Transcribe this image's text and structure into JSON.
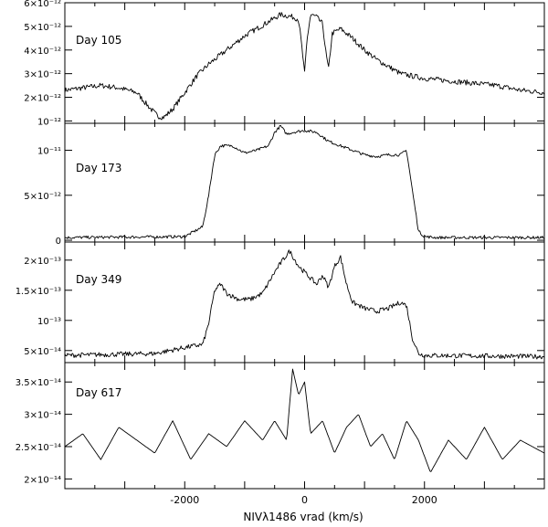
{
  "figure": {
    "xlabel": "NIVλ1486 vrad (km/s)"
  },
  "chart_data": [
    {
      "type": "line",
      "panel_label": "Day 105",
      "xlim": [
        -4000,
        4000
      ],
      "ylim": [
        9e-13,
        6e-12
      ],
      "yticks": [
        {
          "value": 1e-12,
          "label": "10⁻¹²"
        },
        {
          "value": 2e-12,
          "label": "2×10⁻¹²"
        },
        {
          "value": 3e-12,
          "label": "3×10⁻¹²"
        },
        {
          "value": 4e-12,
          "label": "4×10⁻¹²"
        },
        {
          "value": 5e-12,
          "label": "5×10⁻¹²"
        },
        {
          "value": 6e-12,
          "label": "6×10⁻¹²"
        }
      ],
      "x": [
        -4000,
        -3700,
        -3400,
        -3100,
        -2800,
        -2600,
        -2450,
        -2350,
        -2200,
        -2000,
        -1800,
        -1600,
        -1400,
        -1200,
        -1000,
        -800,
        -600,
        -400,
        -200,
        -100,
        -50,
        0,
        40,
        100,
        200,
        300,
        360,
        400,
        460,
        600,
        800,
        1000,
        1200,
        1400,
        1600,
        2000,
        2400,
        2800,
        3200,
        3600,
        4000
      ],
      "y": [
        2.3e-12,
        2.4e-12,
        2.5e-12,
        2.4e-12,
        2.2e-12,
        1.6e-12,
        1.2e-12,
        1.15e-12,
        1.5e-12,
        2.2e-12,
        2.9e-12,
        3.4e-12,
        3.8e-12,
        4.2e-12,
        4.6e-12,
        4.9e-12,
        5.2e-12,
        5.5e-12,
        5.4e-12,
        5.3e-12,
        4.2e-12,
        3e-12,
        4.4e-12,
        5.5e-12,
        5.4e-12,
        5.1e-12,
        3.8e-12,
        3.2e-12,
        4.7e-12,
        4.9e-12,
        4.5e-12,
        4e-12,
        3.6e-12,
        3.3e-12,
        3e-12,
        2.8e-12,
        2.7e-12,
        2.6e-12,
        2.5e-12,
        2.3e-12,
        2.2e-12
      ]
    },
    {
      "type": "line",
      "panel_label": "Day 173",
      "xlim": [
        -4000,
        4000
      ],
      "ylim": [
        -2e-13,
        1.3e-11
      ],
      "yticks": [
        {
          "value": 0,
          "label": "0"
        },
        {
          "value": 5e-12,
          "label": "5×10⁻¹²"
        },
        {
          "value": 1e-11,
          "label": "10⁻¹¹"
        }
      ],
      "x": [
        -4000,
        -2000,
        -1700,
        -1600,
        -1500,
        -1400,
        -1200,
        -1000,
        -800,
        -600,
        -500,
        -400,
        -300,
        -200,
        0,
        200,
        400,
        600,
        800,
        1000,
        1200,
        1400,
        1600,
        1700,
        1800,
        1900,
        2000,
        2200,
        4000
      ],
      "y": [
        3e-13,
        4e-13,
        1.5e-12,
        5e-12,
        9.5e-12,
        1.05e-11,
        1.05e-11,
        9.7e-12,
        1e-11,
        1.05e-11,
        1.2e-11,
        1.27e-11,
        1.18e-11,
        1.2e-11,
        1.22e-11,
        1.2e-11,
        1.1e-11,
        1.05e-11,
        1e-11,
        9.5e-12,
        9.3e-12,
        9.5e-12,
        9.5e-12,
        1e-11,
        5.5e-12,
        1e-12,
        4e-13,
        3e-13,
        3e-13
      ]
    },
    {
      "type": "line",
      "panel_label": "Day 349",
      "xlim": [
        -4000,
        4000
      ],
      "ylim": [
        3e-14,
        2.3e-13
      ],
      "yticks": [
        {
          "value": 5e-14,
          "label": "5×10⁻¹⁴"
        },
        {
          "value": 1e-13,
          "label": "10⁻¹³"
        },
        {
          "value": 1.5e-13,
          "label": "1.5×10⁻¹³"
        },
        {
          "value": 2e-13,
          "label": "2×10⁻¹³"
        }
      ],
      "x": [
        -4000,
        -2500,
        -2000,
        -1700,
        -1600,
        -1500,
        -1400,
        -1300,
        -1100,
        -900,
        -700,
        -500,
        -400,
        -250,
        -100,
        0,
        100,
        200,
        300,
        400,
        500,
        600,
        700,
        800,
        1000,
        1200,
        1400,
        1600,
        1700,
        1800,
        1900,
        2000,
        4000
      ],
      "y": [
        4.2e-14,
        4.5e-14,
        5.5e-14,
        6e-14,
        9.5e-14,
        1.5e-13,
        1.6e-13,
        1.45e-13,
        1.35e-13,
        1.35e-13,
        1.45e-13,
        1.8e-13,
        1.95e-13,
        2.15e-13,
        1.9e-13,
        1.8e-13,
        1.7e-13,
        1.6e-13,
        1.75e-13,
        1.55e-13,
        1.9e-13,
        2.05e-13,
        1.6e-13,
        1.3e-13,
        1.2e-13,
        1.15e-13,
        1.2e-13,
        1.3e-13,
        1.25e-13,
        7e-14,
        4.5e-14,
        4.2e-14,
        4e-14
      ]
    },
    {
      "type": "line",
      "panel_label": "Day 617",
      "xlim": [
        -4000,
        4000
      ],
      "ylim": [
        1.85e-14,
        3.8e-14
      ],
      "yticks": [
        {
          "value": 2e-14,
          "label": "2×10⁻¹⁴"
        },
        {
          "value": 2.5e-14,
          "label": "2.5×10⁻¹⁴"
        },
        {
          "value": 3e-14,
          "label": "3×10⁻¹⁴"
        },
        {
          "value": 3.5e-14,
          "label": "3.5×10⁻¹⁴"
        }
      ],
      "x": [
        -4000,
        -3700,
        -3400,
        -3100,
        -2800,
        -2500,
        -2200,
        -1900,
        -1600,
        -1300,
        -1000,
        -700,
        -500,
        -300,
        -200,
        -100,
        0,
        100,
        300,
        500,
        700,
        900,
        1100,
        1300,
        1500,
        1700,
        1900,
        2100,
        2400,
        2700,
        3000,
        3300,
        3600,
        4000
      ],
      "y": [
        2.5e-14,
        2.7e-14,
        2.3e-14,
        2.8e-14,
        2.6e-14,
        2.4e-14,
        2.9e-14,
        2.3e-14,
        2.7e-14,
        2.5e-14,
        2.9e-14,
        2.6e-14,
        2.9e-14,
        2.6e-14,
        3.7e-14,
        3.3e-14,
        3.5e-14,
        2.7e-14,
        2.9e-14,
        2.4e-14,
        2.8e-14,
        3e-14,
        2.5e-14,
        2.7e-14,
        2.3e-14,
        2.9e-14,
        2.6e-14,
        2.1e-14,
        2.6e-14,
        2.3e-14,
        2.8e-14,
        2.3e-14,
        2.6e-14,
        2.4e-14
      ]
    }
  ],
  "x_axis": {
    "ticks": [
      {
        "value": -2000,
        "label": "-2000"
      },
      {
        "value": 0,
        "label": "0"
      },
      {
        "value": 2000,
        "label": "2000"
      }
    ]
  },
  "style": {
    "line_color": "#000000",
    "background": "#ffffff"
  }
}
